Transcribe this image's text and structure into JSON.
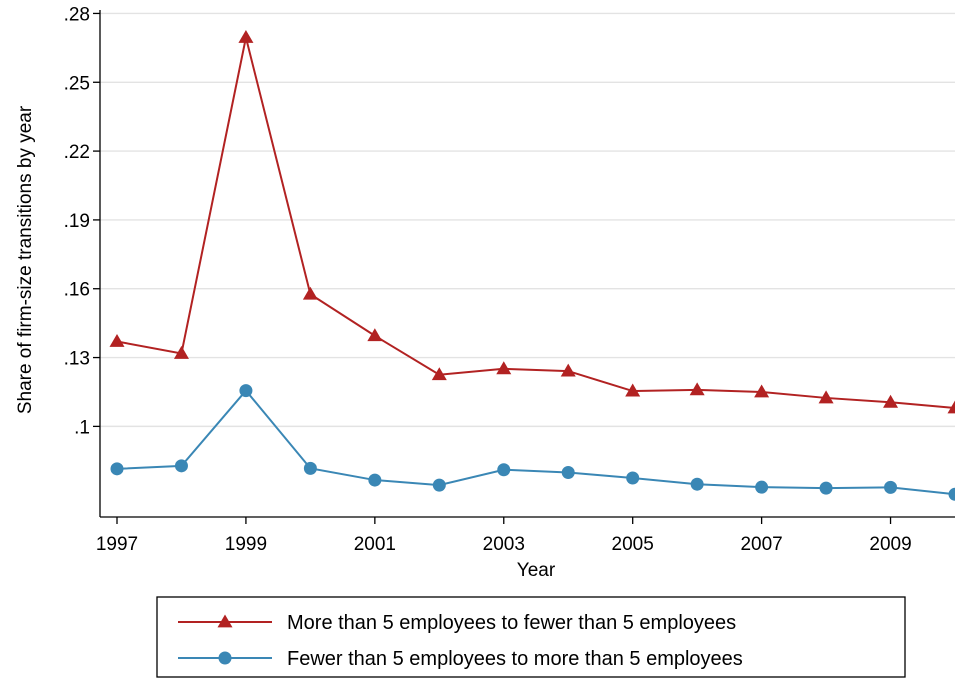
{
  "chart_data": {
    "type": "line",
    "xlabel": "Year",
    "ylabel": "Share of firm-size transitions by year",
    "x": [
      1997,
      1998,
      1999,
      2000,
      2001,
      2002,
      2003,
      2004,
      2005,
      2006,
      2007,
      2008,
      2009,
      2010
    ],
    "xlim": [
      1997,
      2010
    ],
    "ylim": [
      0.0605,
      0.2815
    ],
    "x_ticks": [
      1997,
      1999,
      2001,
      2003,
      2005,
      2007,
      2009
    ],
    "x_tick_labels": [
      "1997",
      "1999",
      "2001",
      "2003",
      "2005",
      "2007",
      "2009"
    ],
    "y_ticks": [
      0.1,
      0.13,
      0.16,
      0.19,
      0.22,
      0.25,
      0.28
    ],
    "y_tick_labels": [
      ".1",
      ".13",
      ".16",
      ".19",
      ".22",
      ".25",
      ".28"
    ],
    "grid": "horizontal",
    "legend_position": "bottom",
    "series": [
      {
        "name": "More than 5 employees to fewer than 5 employees",
        "color": "#b22222",
        "marker": "triangle",
        "values": [
          0.137,
          0.1318,
          0.2695,
          0.1576,
          0.1395,
          0.1225,
          0.1251,
          0.1241,
          0.1154,
          0.1159,
          0.115,
          0.1124,
          0.1105,
          0.108
        ]
      },
      {
        "name": "Fewer than 5 employees to more than 5 employees",
        "color": "#3a87b5",
        "marker": "circle",
        "values": [
          0.0815,
          0.0828,
          0.1156,
          0.0817,
          0.0766,
          0.0744,
          0.0811,
          0.0799,
          0.0775,
          0.0748,
          0.0735,
          0.0731,
          0.0734,
          0.0704
        ]
      }
    ]
  }
}
